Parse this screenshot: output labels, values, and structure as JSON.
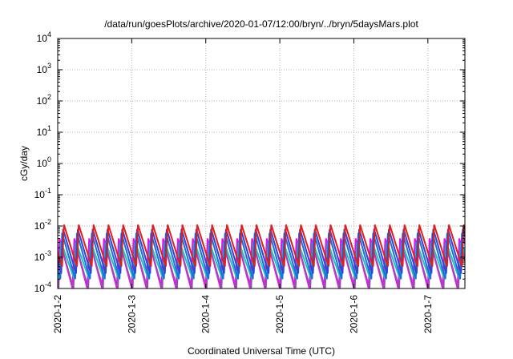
{
  "chart_data": {
    "type": "line",
    "title": "/data/run/goesPlots/archive/2020-01-07/12:00/bryn/../bryn/5daysMars.plot",
    "xlabel": "Coordinated Universal Time (UTC)",
    "ylabel": "cGy/day",
    "y_scale": "log",
    "ylim": [
      0.0001,
      10000
    ],
    "xlim": [
      "2020-01-02",
      "2020-01-07 12:00"
    ],
    "grid": true,
    "legend": "none",
    "x_ticks": [
      "2020-1-2",
      "2020-1-3",
      "2020-1-4",
      "2020-1-5",
      "2020-1-6",
      "2020-1-7"
    ],
    "y_ticks": [
      {
        "base": "10",
        "exp": "-4"
      },
      {
        "base": "10",
        "exp": "-3"
      },
      {
        "base": "10",
        "exp": "-2"
      },
      {
        "base": "10",
        "exp": "-1"
      },
      {
        "base": "10",
        "exp": "0"
      },
      {
        "base": "10",
        "exp": "1"
      },
      {
        "base": "10",
        "exp": "2"
      },
      {
        "base": "10",
        "exp": "3"
      },
      {
        "base": "10",
        "exp": "4"
      }
    ],
    "pattern": {
      "description": "sawtooth cycles repeating roughly every 0.2 day",
      "period_days": 0.2
    },
    "series": [
      {
        "color": "#ff00ff",
        "peak": 0.004,
        "trough": 0.0001
      },
      {
        "color": "#9a4db0",
        "peak": 0.003,
        "trough": 0.0001
      },
      {
        "color": "#20c0c0",
        "peak": 0.003,
        "trough": 0.0002
      },
      {
        "color": "#1e6fd9",
        "peak": 0.006,
        "trough": 0.0002
      },
      {
        "color": "#2f44d8",
        "peak": 0.008,
        "trough": 0.0003
      },
      {
        "color": "#e0201a",
        "peak": 0.011,
        "trough": 0.0005
      }
    ]
  }
}
